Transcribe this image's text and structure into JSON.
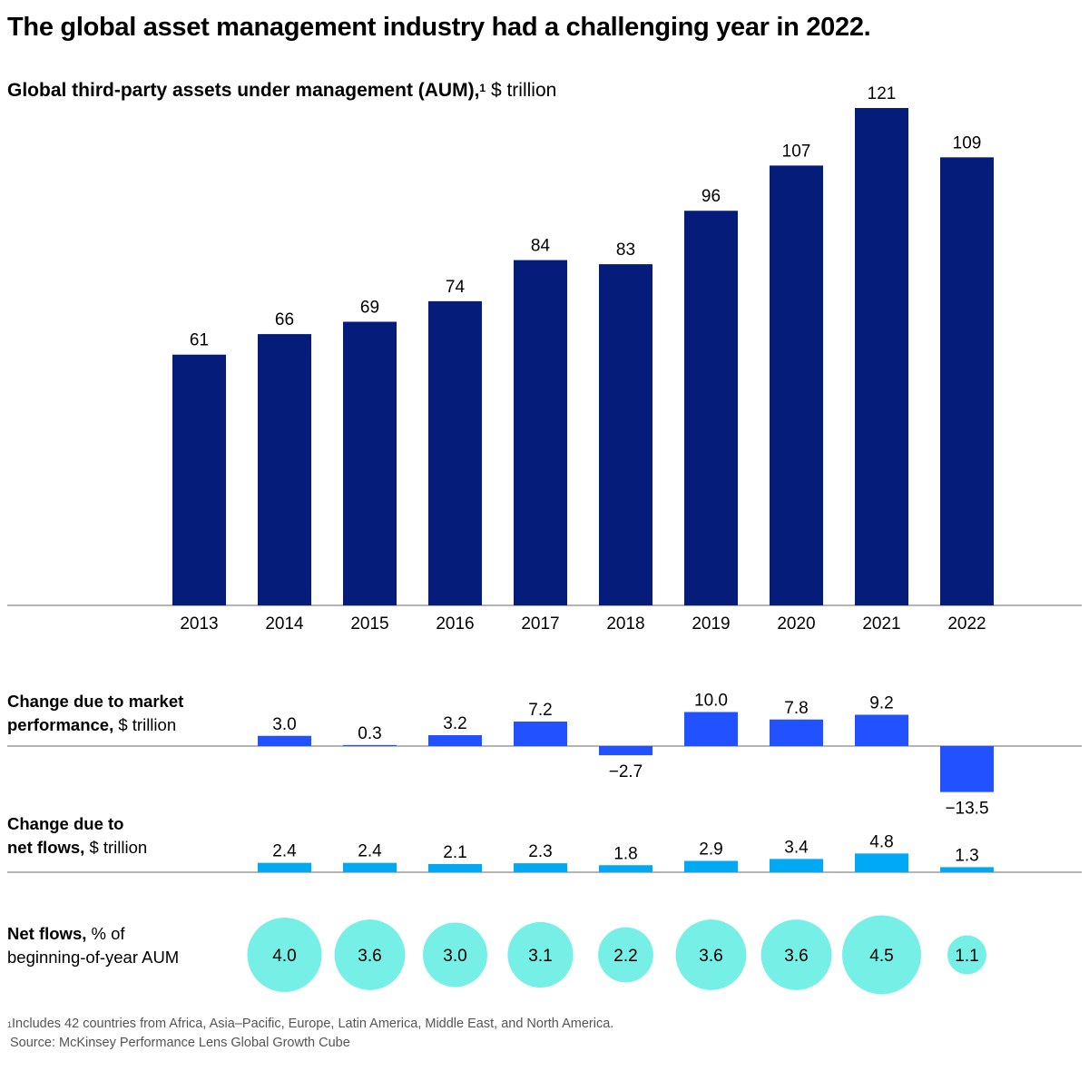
{
  "title": "The global asset management industry had a challenging year in 2022.",
  "subtitle": {
    "bold": "Global third-party assets under management (AUM),",
    "footnote_marker": "1",
    "unit": " $ trillion"
  },
  "row_labels": {
    "market": {
      "bold_line1": "Change due to market",
      "bold_line2": "performance,",
      "unit": " $ trillion"
    },
    "netflows": {
      "bold_line1": "Change due to",
      "bold_line2": "net flows,",
      "unit": " $ trillion"
    },
    "netflows_pct": {
      "bold": "Net flows,",
      "rest_line1": " % of",
      "line2": "beginning-of-year AUM"
    }
  },
  "footnote": {
    "marker": "1",
    "text": "Includes 42 countries from Africa, Asia–Pacific, Europe, Latin America, Middle East, and North America.",
    "source": "Source: McKinsey Performance Lens Global Growth Cube"
  },
  "colors": {
    "aum": "#051C7A",
    "market": "#2251FF",
    "netflows": "#00A9F4",
    "netflows_pct": "#76F0E6",
    "axis": "#888888"
  },
  "chart_data": [
    {
      "type": "bar",
      "title": "Global third-party assets under management (AUM)",
      "ylabel": "$ trillion",
      "categories": [
        "2013",
        "2014",
        "2015",
        "2016",
        "2017",
        "2018",
        "2019",
        "2020",
        "2021",
        "2022"
      ],
      "values": [
        61,
        66,
        69,
        74,
        84,
        83,
        96,
        107,
        121,
        109
      ],
      "labels": [
        "61",
        "66",
        "69",
        "74",
        "84",
        "83",
        "96",
        "107",
        "121",
        "109"
      ],
      "ylim": [
        0,
        121
      ],
      "grid": false
    },
    {
      "type": "bar",
      "title": "Change due to market performance",
      "ylabel": "$ trillion",
      "categories": [
        "2014",
        "2015",
        "2016",
        "2017",
        "2018",
        "2019",
        "2020",
        "2021",
        "2022"
      ],
      "values": [
        3.0,
        0.3,
        3.2,
        7.2,
        -2.7,
        10.0,
        7.8,
        9.2,
        -13.5
      ],
      "labels": [
        "3.0",
        "0.3",
        "3.2",
        "7.2",
        "−2.7",
        "10.0",
        "7.8",
        "9.2",
        "−13.5"
      ]
    },
    {
      "type": "bar",
      "title": "Change due to net flows",
      "ylabel": "$ trillion",
      "categories": [
        "2014",
        "2015",
        "2016",
        "2017",
        "2018",
        "2019",
        "2020",
        "2021",
        "2022"
      ],
      "values": [
        2.4,
        2.4,
        2.1,
        2.3,
        1.8,
        2.9,
        3.4,
        4.8,
        1.3
      ],
      "labels": [
        "2.4",
        "2.4",
        "2.1",
        "2.3",
        "1.8",
        "2.9",
        "3.4",
        "4.8",
        "1.3"
      ]
    },
    {
      "type": "scatter",
      "title": "Net flows, % of beginning-of-year AUM",
      "categories": [
        "2014",
        "2015",
        "2016",
        "2017",
        "2018",
        "2019",
        "2020",
        "2021",
        "2022"
      ],
      "values": [
        4.0,
        3.6,
        3.0,
        3.1,
        2.2,
        3.6,
        3.6,
        4.5,
        1.1
      ],
      "labels": [
        "4.0",
        "3.6",
        "3.0",
        "3.1",
        "2.2",
        "3.6",
        "3.6",
        "4.5",
        "1.1"
      ],
      "encoding": "bubble area proportional to value"
    }
  ]
}
